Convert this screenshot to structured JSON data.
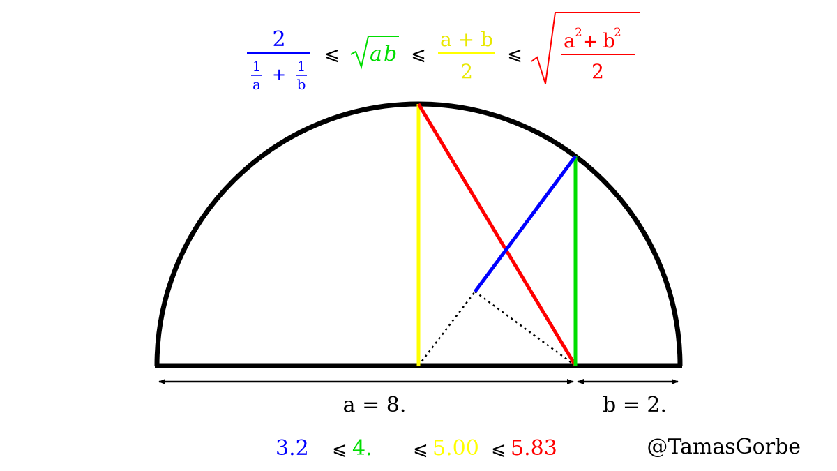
{
  "formula": {
    "hm": {
      "num": "2",
      "frac1_num": "1",
      "frac1_den": "a",
      "plus": "+",
      "frac2_num": "1",
      "frac2_den": "b"
    },
    "leq": "⩽",
    "gm": {
      "radicand_a": "a",
      "radicand_b": "b"
    },
    "am": {
      "num": "a + b",
      "den": "2"
    },
    "qm": {
      "num_a": "a",
      "sup_a": "2",
      "plus": "+",
      "num_b": "b",
      "sup_b": "2",
      "den": "2"
    }
  },
  "labels": {
    "a_label": "a = 8.",
    "b_label": "b = 2."
  },
  "values": {
    "hm": "3.2",
    "gm": "4.",
    "am": "5.00",
    "qm": "5.83",
    "leq": "⩽"
  },
  "credit": "@TamasGorbe",
  "colors": {
    "harmonic": "#0000ff",
    "geometric": "#00dd00",
    "arithmetic": "#ffff00",
    "quadratic": "#ff0000",
    "outline": "#000000"
  },
  "diagram": {
    "a": 8,
    "b": 2
  }
}
